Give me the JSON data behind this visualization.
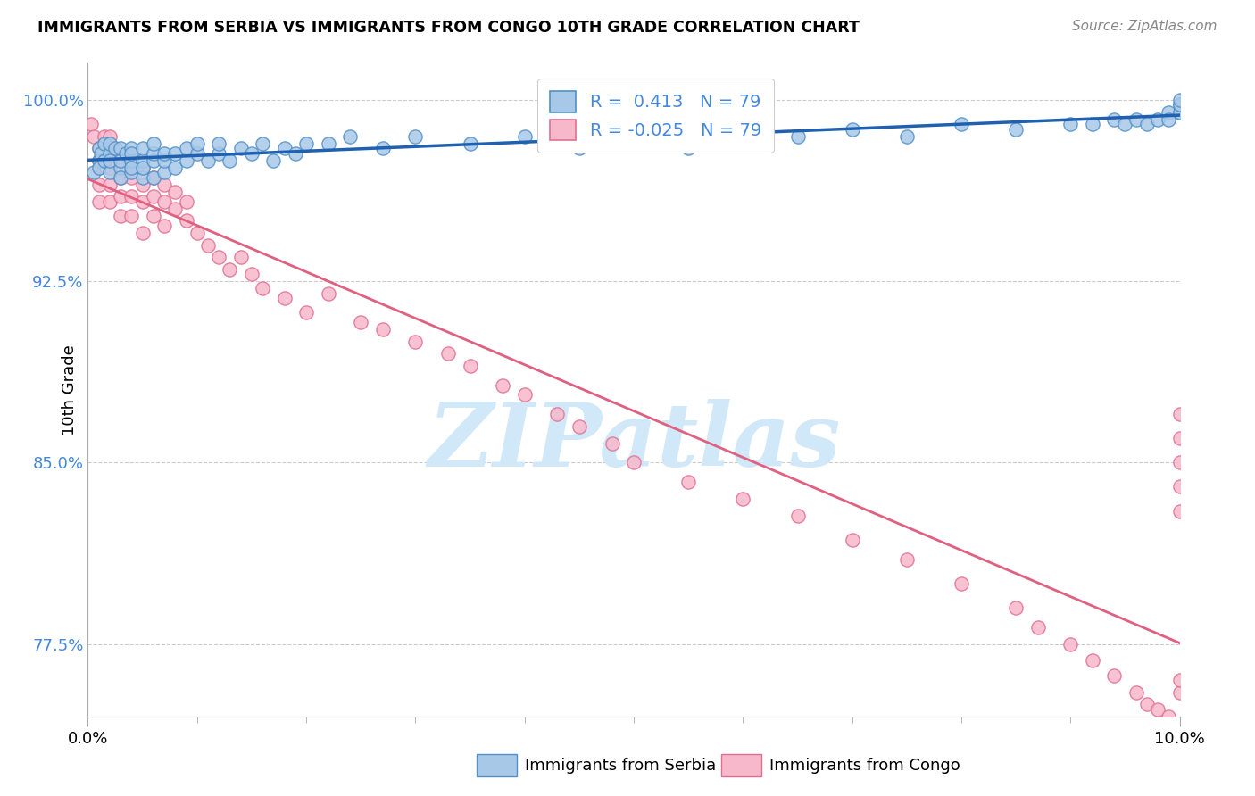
{
  "title": "IMMIGRANTS FROM SERBIA VS IMMIGRANTS FROM CONGO 10TH GRADE CORRELATION CHART",
  "source_text": "Source: ZipAtlas.com",
  "ylabel": "10th Grade",
  "legend_label_blue": "Immigrants from Serbia",
  "legend_label_pink": "Immigrants from Congo",
  "R_blue": 0.413,
  "R_pink": -0.025,
  "N": 79,
  "color_blue_fill": "#a8c8e8",
  "color_blue_edge": "#5090c8",
  "color_blue_line": "#2060b0",
  "color_pink_fill": "#f8b8cc",
  "color_pink_edge": "#e07090",
  "color_pink_line": "#e06080",
  "color_ytick": "#4488dd",
  "background_color": "#ffffff",
  "grid_color": "#cccccc",
  "xlim": [
    0.0,
    0.1
  ],
  "ylim": [
    0.745,
    1.015
  ],
  "yticks": [
    0.775,
    0.85,
    0.925,
    1.0
  ],
  "ytick_labels": [
    "77.5%",
    "85.0%",
    "92.5%",
    "100.0%"
  ],
  "serbia_x": [
    0.0005,
    0.001,
    0.001,
    0.001,
    0.0012,
    0.0015,
    0.0015,
    0.002,
    0.002,
    0.002,
    0.002,
    0.0025,
    0.003,
    0.003,
    0.003,
    0.003,
    0.0035,
    0.004,
    0.004,
    0.004,
    0.004,
    0.004,
    0.005,
    0.005,
    0.005,
    0.005,
    0.006,
    0.006,
    0.006,
    0.006,
    0.007,
    0.007,
    0.007,
    0.008,
    0.008,
    0.009,
    0.009,
    0.01,
    0.01,
    0.011,
    0.012,
    0.012,
    0.013,
    0.014,
    0.015,
    0.016,
    0.017,
    0.018,
    0.019,
    0.02,
    0.022,
    0.024,
    0.027,
    0.03,
    0.035,
    0.04,
    0.045,
    0.05,
    0.055,
    0.06,
    0.065,
    0.07,
    0.075,
    0.08,
    0.085,
    0.09,
    0.092,
    0.094,
    0.095,
    0.096,
    0.097,
    0.098,
    0.099,
    0.099,
    0.1,
    0.1,
    0.1,
    0.1,
    0.1
  ],
  "serbia_y": [
    0.97,
    0.975,
    0.98,
    0.972,
    0.978,
    0.982,
    0.975,
    0.97,
    0.978,
    0.982,
    0.975,
    0.98,
    0.972,
    0.968,
    0.975,
    0.98,
    0.978,
    0.97,
    0.975,
    0.98,
    0.972,
    0.978,
    0.968,
    0.975,
    0.98,
    0.972,
    0.968,
    0.975,
    0.978,
    0.982,
    0.97,
    0.975,
    0.978,
    0.972,
    0.978,
    0.975,
    0.98,
    0.978,
    0.982,
    0.975,
    0.978,
    0.982,
    0.975,
    0.98,
    0.978,
    0.982,
    0.975,
    0.98,
    0.978,
    0.982,
    0.982,
    0.985,
    0.98,
    0.985,
    0.982,
    0.985,
    0.98,
    0.985,
    0.98,
    0.988,
    0.985,
    0.988,
    0.985,
    0.99,
    0.988,
    0.99,
    0.99,
    0.992,
    0.99,
    0.992,
    0.99,
    0.992,
    0.995,
    0.992,
    0.995,
    0.995,
    0.998,
    0.998,
    1.0
  ],
  "congo_x": [
    0.0003,
    0.0005,
    0.001,
    0.001,
    0.001,
    0.001,
    0.001,
    0.0015,
    0.002,
    0.002,
    0.002,
    0.002,
    0.002,
    0.0025,
    0.003,
    0.003,
    0.003,
    0.003,
    0.004,
    0.004,
    0.004,
    0.004,
    0.005,
    0.005,
    0.005,
    0.005,
    0.006,
    0.006,
    0.006,
    0.007,
    0.007,
    0.007,
    0.008,
    0.008,
    0.009,
    0.009,
    0.01,
    0.011,
    0.012,
    0.013,
    0.014,
    0.015,
    0.016,
    0.018,
    0.02,
    0.022,
    0.025,
    0.027,
    0.03,
    0.033,
    0.035,
    0.038,
    0.04,
    0.043,
    0.045,
    0.048,
    0.05,
    0.055,
    0.06,
    0.065,
    0.07,
    0.075,
    0.08,
    0.085,
    0.087,
    0.09,
    0.092,
    0.094,
    0.096,
    0.097,
    0.098,
    0.099,
    0.1,
    0.1,
    0.1,
    0.1,
    0.1,
    0.1,
    0.1
  ],
  "congo_y": [
    0.99,
    0.985,
    0.98,
    0.972,
    0.965,
    0.958,
    0.975,
    0.985,
    0.978,
    0.972,
    0.965,
    0.958,
    0.985,
    0.978,
    0.975,
    0.968,
    0.96,
    0.952,
    0.975,
    0.968,
    0.96,
    0.952,
    0.972,
    0.965,
    0.958,
    0.945,
    0.968,
    0.96,
    0.952,
    0.965,
    0.958,
    0.948,
    0.962,
    0.955,
    0.958,
    0.95,
    0.945,
    0.94,
    0.935,
    0.93,
    0.935,
    0.928,
    0.922,
    0.918,
    0.912,
    0.92,
    0.908,
    0.905,
    0.9,
    0.895,
    0.89,
    0.882,
    0.878,
    0.87,
    0.865,
    0.858,
    0.85,
    0.842,
    0.835,
    0.828,
    0.818,
    0.81,
    0.8,
    0.79,
    0.782,
    0.775,
    0.768,
    0.762,
    0.755,
    0.75,
    0.748,
    0.745,
    0.755,
    0.76,
    0.83,
    0.84,
    0.85,
    0.86,
    0.87
  ],
  "watermark_text": "ZIPatlas",
  "watermark_color": "#d0e8f8"
}
